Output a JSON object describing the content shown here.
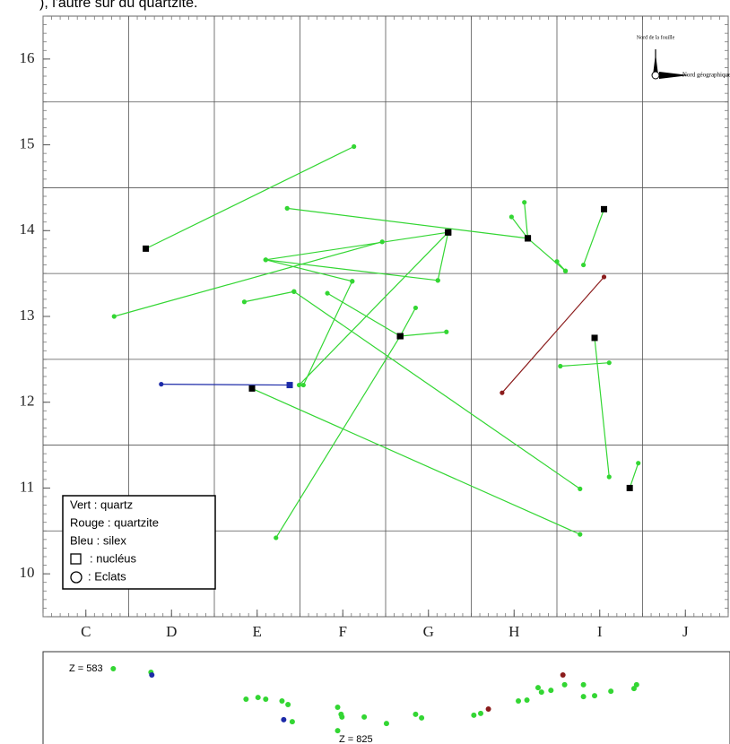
{
  "caption": "), l'autre sur du quartzite.",
  "chart_data": {
    "type": "scatter",
    "xlim": [
      0.5,
      8.5
    ],
    "ylim": [
      9.5,
      16.5
    ],
    "xticks": [
      {
        "value": 1,
        "label": "C"
      },
      {
        "value": 2,
        "label": "D"
      },
      {
        "value": 3,
        "label": "E"
      },
      {
        "value": 4,
        "label": "F"
      },
      {
        "value": 5,
        "label": "G"
      },
      {
        "value": 6,
        "label": "H"
      },
      {
        "value": 7,
        "label": "I"
      },
      {
        "value": 8,
        "label": "J"
      }
    ],
    "yticks": [
      10,
      11,
      12,
      13,
      14,
      15,
      16
    ],
    "xgrid": [
      1.5,
      2.5,
      3.5,
      4.5,
      5.5,
      6.5,
      7.5
    ],
    "ygrid": [
      10.5,
      11.5,
      12.5,
      13.5,
      14.5,
      15.5
    ],
    "colors": {
      "quartz": "#33d633",
      "quartzite": "#8b1c1c",
      "silex": "#1c2aa8"
    },
    "legend": [
      "Vert : quartz",
      "Rouge : quartzite",
      "Bleu : silex",
      ": nucléus",
      ":  Eclats"
    ],
    "north": {
      "site": "Nord de la fouille",
      "geo": "Nord géographique"
    },
    "links": [
      {
        "material": "quartz",
        "nucleus": true,
        "x": [
          1.7,
          4.13
        ],
        "y": [
          13.79,
          14.98
        ]
      },
      {
        "material": "quartz",
        "nucleus": false,
        "x": [
          1.33,
          4.46
        ],
        "y": [
          13.0,
          13.87
        ]
      },
      {
        "material": "quartz",
        "nucleus": true,
        "x": [
          6.16,
          3.35
        ],
        "y": [
          13.91,
          14.26
        ]
      },
      {
        "material": "quartz",
        "nucleus": true,
        "x": [
          5.23,
          3.1
        ],
        "y": [
          13.98,
          13.66
        ]
      },
      {
        "material": "quartz",
        "nucleus": true,
        "x": [
          5.23,
          5.11
        ],
        "y": [
          13.98,
          13.42
        ]
      },
      {
        "material": "quartz",
        "nucleus": true,
        "x": [
          5.23,
          3.49
        ],
        "y": [
          13.98,
          12.2
        ]
      },
      {
        "material": "quartz",
        "nucleus": false,
        "x": [
          3.1,
          4.11
        ],
        "y": [
          13.66,
          13.41
        ]
      },
      {
        "material": "quartz",
        "nucleus": false,
        "x": [
          3.1,
          5.11
        ],
        "y": [
          13.66,
          13.42
        ]
      },
      {
        "material": "quartz",
        "nucleus": false,
        "x": [
          2.85,
          3.43
        ],
        "y": [
          13.17,
          13.29
        ]
      },
      {
        "material": "quartz",
        "nucleus": false,
        "x": [
          3.43,
          6.77
        ],
        "y": [
          13.29,
          10.99
        ]
      },
      {
        "material": "quartz",
        "nucleus": false,
        "x": [
          3.54,
          4.11
        ],
        "y": [
          12.2,
          13.41
        ]
      },
      {
        "material": "quartz",
        "nucleus": true,
        "x": [
          4.67,
          3.22
        ],
        "y": [
          12.77,
          10.42
        ]
      },
      {
        "material": "quartz",
        "nucleus": true,
        "x": [
          4.67,
          4.85
        ],
        "y": [
          12.77,
          13.1
        ]
      },
      {
        "material": "quartz",
        "nucleus": true,
        "x": [
          4.67,
          5.21
        ],
        "y": [
          12.77,
          12.82
        ]
      },
      {
        "material": "quartz",
        "nucleus": true,
        "x": [
          4.67,
          3.82
        ],
        "y": [
          12.77,
          13.27
        ]
      },
      {
        "material": "quartz",
        "nucleus": true,
        "x": [
          2.94,
          6.77
        ],
        "y": [
          12.16,
          10.46
        ]
      },
      {
        "material": "quartz",
        "nucleus": true,
        "x": [
          6.16,
          5.97
        ],
        "y": [
          13.91,
          14.16
        ]
      },
      {
        "material": "quartz",
        "nucleus": true,
        "x": [
          6.16,
          6.12
        ],
        "y": [
          13.91,
          14.33
        ]
      },
      {
        "material": "quartz",
        "nucleus": true,
        "x": [
          6.16,
          6.6
        ],
        "y": [
          13.91,
          13.53
        ]
      },
      {
        "material": "quartz",
        "nucleus": false,
        "x": [
          6.5,
          6.6
        ],
        "y": [
          13.64,
          13.53
        ]
      },
      {
        "material": "quartz",
        "nucleus": true,
        "x": [
          7.05,
          6.81
        ],
        "y": [
          14.25,
          13.6
        ]
      },
      {
        "material": "quartz",
        "nucleus": true,
        "x": [
          6.94,
          7.11
        ],
        "y": [
          12.75,
          11.13
        ]
      },
      {
        "material": "quartz",
        "nucleus": false,
        "x": [
          6.54,
          7.11
        ],
        "y": [
          12.42,
          12.46
        ]
      },
      {
        "material": "quartz",
        "nucleus": true,
        "x": [
          7.35,
          7.45
        ],
        "y": [
          11.0,
          11.29
        ]
      },
      {
        "material": "quartzite",
        "nucleus": false,
        "x": [
          7.05,
          5.86
        ],
        "y": [
          13.46,
          12.11
        ]
      },
      {
        "material": "silex",
        "nucleus": true,
        "x": [
          3.38,
          1.88
        ],
        "y": [
          12.2,
          12.21
        ]
      }
    ],
    "profile": {
      "zlim": [
        583,
        825
      ],
      "zlabels": [
        "Z = 583",
        "Z = 825"
      ],
      "points": [
        {
          "material": "quartz",
          "x": 1.32,
          "z": 583
        },
        {
          "material": "quartz",
          "x": 1.76,
          "z": 595
        },
        {
          "material": "silex",
          "x": 1.77,
          "z": 604
        },
        {
          "material": "quartz",
          "x": 2.87,
          "z": 686
        },
        {
          "material": "quartz",
          "x": 3.01,
          "z": 680
        },
        {
          "material": "quartz",
          "x": 3.1,
          "z": 686
        },
        {
          "material": "quartz",
          "x": 3.29,
          "z": 692
        },
        {
          "material": "quartz",
          "x": 3.36,
          "z": 704
        },
        {
          "material": "silex",
          "x": 3.31,
          "z": 755
        },
        {
          "material": "quartz",
          "x": 3.41,
          "z": 762
        },
        {
          "material": "quartz",
          "x": 3.94,
          "z": 713
        },
        {
          "material": "quartz",
          "x": 3.98,
          "z": 737
        },
        {
          "material": "quartz",
          "x": 3.99,
          "z": 746
        },
        {
          "material": "quartz",
          "x": 4.25,
          "z": 746
        },
        {
          "material": "quartz",
          "x": 4.51,
          "z": 768
        },
        {
          "material": "quartz",
          "x": 4.85,
          "z": 737
        },
        {
          "material": "quartz",
          "x": 4.92,
          "z": 749
        },
        {
          "material": "quartz",
          "x": 3.94,
          "z": 792
        },
        {
          "material": "quartz",
          "x": 5.53,
          "z": 740
        },
        {
          "material": "quartz",
          "x": 5.61,
          "z": 734
        },
        {
          "material": "quartzite",
          "x": 5.7,
          "z": 719
        },
        {
          "material": "quartz",
          "x": 6.05,
          "z": 692
        },
        {
          "material": "quartz",
          "x": 6.15,
          "z": 689
        },
        {
          "material": "quartz",
          "x": 6.28,
          "z": 647
        },
        {
          "material": "quartz",
          "x": 6.32,
          "z": 662
        },
        {
          "material": "quartz",
          "x": 6.43,
          "z": 656
        },
        {
          "material": "quartzite",
          "x": 6.57,
          "z": 604
        },
        {
          "material": "quartz",
          "x": 6.59,
          "z": 637
        },
        {
          "material": "quartz",
          "x": 6.81,
          "z": 637
        },
        {
          "material": "quartz",
          "x": 6.81,
          "z": 677
        },
        {
          "material": "quartz",
          "x": 6.94,
          "z": 674
        },
        {
          "material": "quartz",
          "x": 7.13,
          "z": 659
        },
        {
          "material": "quartz",
          "x": 7.4,
          "z": 650
        },
        {
          "material": "quartz",
          "x": 7.43,
          "z": 637
        }
      ]
    }
  }
}
